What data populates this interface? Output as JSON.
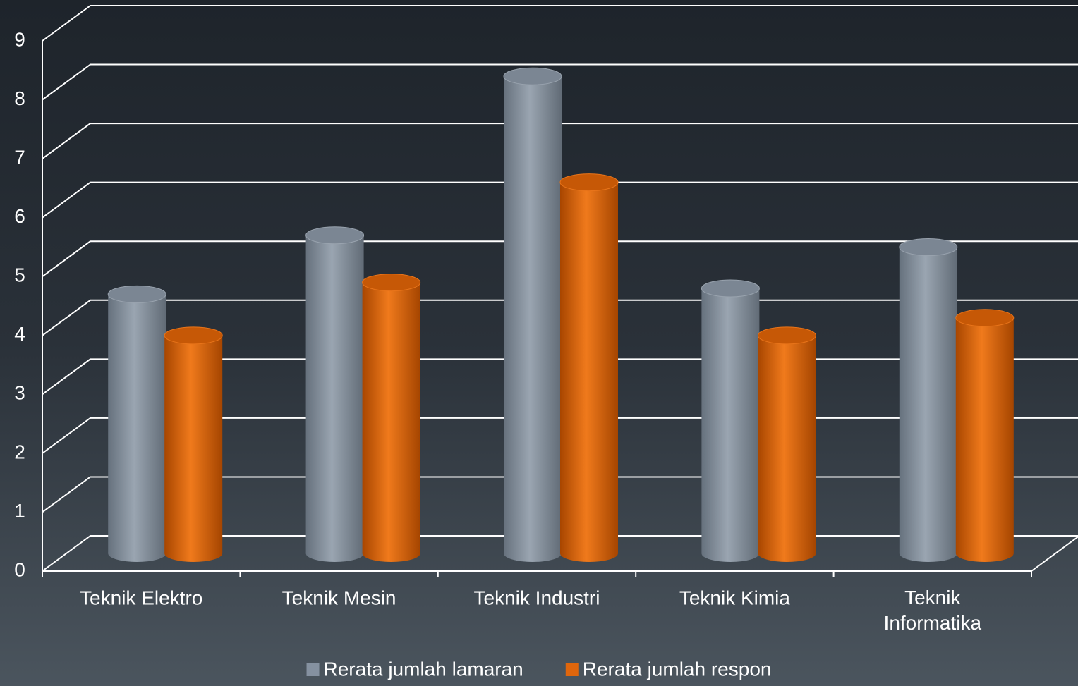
{
  "chart_data": {
    "type": "bar",
    "categories": [
      "Teknik Elektro",
      "Teknik Mesin",
      "Teknik Industri",
      "Teknik Kimia",
      "Teknik Informatika"
    ],
    "series": [
      {
        "name": "Rerata jumlah lamaran",
        "color": "#8591a0",
        "values": [
          4.4,
          5.4,
          8.1,
          4.5,
          5.2
        ]
      },
      {
        "name": "Rerata jumlah respon",
        "color": "#e0660c",
        "values": [
          3.7,
          4.6,
          6.3,
          3.7,
          4.0
        ]
      }
    ],
    "ylim": [
      0,
      9
    ],
    "yticks": [
      0,
      1,
      2,
      3,
      4,
      5,
      6,
      7,
      8,
      9
    ],
    "grid": true,
    "legend": "bottom"
  }
}
